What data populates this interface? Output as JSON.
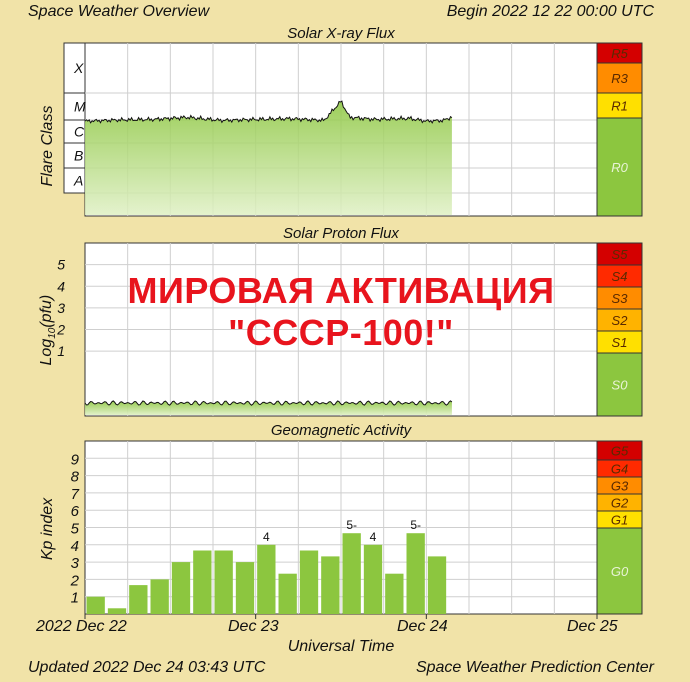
{
  "header": {
    "left": "Space Weather Overview",
    "right": "Begin 2022 12 22 00:00 UTC"
  },
  "footer": {
    "left": "Updated 2022 Dec 24 03:43 UTC",
    "right": "Space Weather Prediction Center"
  },
  "overlay": {
    "line1": "МИРОВАЯ АКТИВАЦИЯ",
    "line2": "\"СССР-100!\""
  },
  "colors": {
    "background": "#f1e3a8",
    "data_green": "#8cc63f",
    "scale_green": "#8cc63f",
    "overlay_red": "#e8141d"
  },
  "chart_data": [
    {
      "type": "area",
      "title": "Solar X-ray Flux",
      "ylabel": "Flare Class",
      "y_classes": [
        "X",
        "M",
        "C",
        "B",
        "A"
      ],
      "x_ticks": [
        "2022 Dec 22",
        "Dec 23",
        "Dec 24",
        "Dec 25"
      ],
      "x_range_days": [
        0,
        3
      ],
      "data_end_day": 2.15,
      "flux_level_class": [
        [
          0.0,
          1.55
        ],
        [
          0.2,
          1.6
        ],
        [
          0.4,
          1.62
        ],
        [
          0.6,
          1.7
        ],
        [
          0.8,
          1.58
        ],
        [
          1.0,
          1.62
        ],
        [
          1.2,
          1.65
        ],
        [
          1.4,
          1.58
        ],
        [
          1.5,
          2.3
        ],
        [
          1.55,
          1.7
        ],
        [
          1.7,
          1.62
        ],
        [
          1.9,
          1.66
        ],
        [
          2.0,
          1.55
        ],
        [
          2.1,
          1.58
        ],
        [
          2.15,
          1.72
        ]
      ],
      "scale": [
        {
          "label": "R5",
          "color": "#d40000"
        },
        {
          "label": "R3",
          "color": "#ff8c00"
        },
        {
          "label": "R1",
          "color": "#ffe000"
        },
        {
          "label": "R0",
          "color": "#8cc63f"
        }
      ],
      "grid": true
    },
    {
      "type": "area",
      "title": "Solar Proton Flux",
      "ylabel": "Log10(pfu)",
      "ylabel_parts": [
        "Log",
        "10",
        "(pfu)"
      ],
      "yticks": [
        "5",
        "4",
        "3",
        "2",
        "1"
      ],
      "ylim": [
        -2,
        6
      ],
      "data_end_day": 2.15,
      "level": -1.4,
      "scale": [
        {
          "label": "S5",
          "color": "#d40000"
        },
        {
          "label": "S4",
          "color": "#ff2a00"
        },
        {
          "label": "S3",
          "color": "#ff8c00"
        },
        {
          "label": "S2",
          "color": "#ffb300"
        },
        {
          "label": "S1",
          "color": "#ffe000"
        },
        {
          "label": "S0",
          "color": "#8cc63f"
        }
      ],
      "grid": true
    },
    {
      "type": "bar",
      "title": "Geomagnetic Activity",
      "ylabel": "Kp index",
      "xlabel": "Universal Time",
      "yticks": [
        "1",
        "2",
        "3",
        "4",
        "5",
        "6",
        "7",
        "8",
        "9"
      ],
      "ylim": [
        0,
        10
      ],
      "bar_width_hours": 3,
      "kp_values": [
        1.0,
        0.33,
        1.67,
        2.0,
        3.0,
        3.67,
        3.67,
        3.0,
        4.0,
        2.33,
        3.67,
        3.33,
        4.67,
        4.0,
        2.33,
        4.67,
        3.33
      ],
      "bar_labels": [
        {
          "index": 8,
          "text": "4"
        },
        {
          "index": 12,
          "text": "5-"
        },
        {
          "index": 13,
          "text": "4"
        },
        {
          "index": 15,
          "text": "5-"
        }
      ],
      "scale": [
        {
          "label": "G5",
          "color": "#d40000"
        },
        {
          "label": "G4",
          "color": "#ff2a00"
        },
        {
          "label": "G3",
          "color": "#ff8c00"
        },
        {
          "label": "G2",
          "color": "#ffb300"
        },
        {
          "label": "G1",
          "color": "#ffe000"
        },
        {
          "label": "G0",
          "color": "#8cc63f"
        }
      ],
      "grid": true
    }
  ]
}
